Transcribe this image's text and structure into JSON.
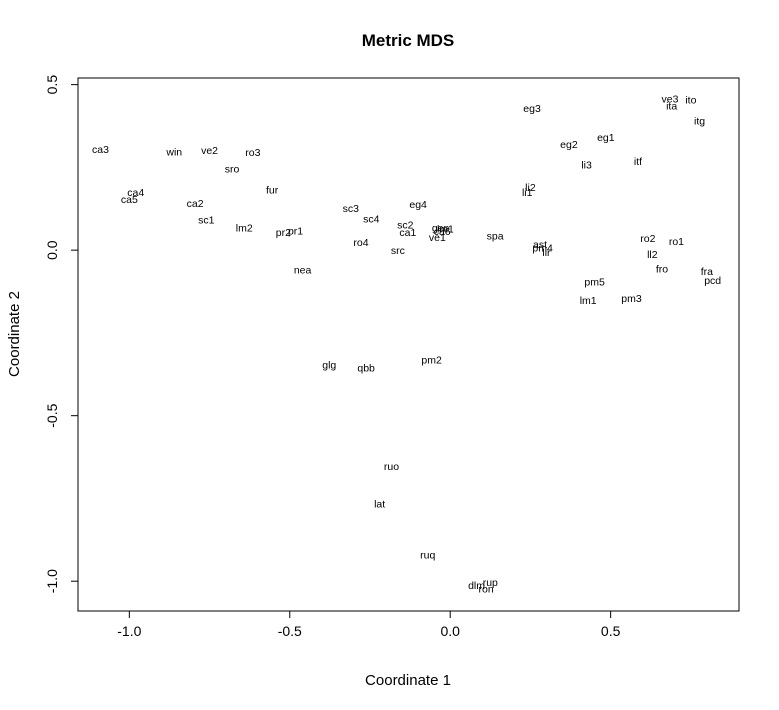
{
  "chart_data": {
    "type": "scatter",
    "title": "Metric MDS",
    "xlabel": "Coordinate 1",
    "ylabel": "Coordinate 2",
    "xlim": [
      -1.16,
      0.9
    ],
    "ylim": [
      -1.09,
      0.52
    ],
    "xticks": [
      -1.0,
      -0.5,
      0.0,
      0.5
    ],
    "xtick_labels": [
      "-1.0",
      "-0.5",
      "0.0",
      "0.5"
    ],
    "yticks": [
      -1.0,
      -0.5,
      0.0,
      0.5
    ],
    "ytick_labels": [
      "-1.0",
      "-0.5",
      "0.0",
      "0.5"
    ],
    "grid": false,
    "points": [
      {
        "label": "ca3",
        "x": -1.09,
        "y": 0.305
      },
      {
        "label": "win",
        "x": -0.86,
        "y": 0.298
      },
      {
        "label": "ve2",
        "x": -0.75,
        "y": 0.303
      },
      {
        "label": "ro3",
        "x": -0.615,
        "y": 0.297
      },
      {
        "label": "sro",
        "x": -0.68,
        "y": 0.247
      },
      {
        "label": "fur",
        "x": -0.555,
        "y": 0.183
      },
      {
        "label": "ca4",
        "x": -0.98,
        "y": 0.175
      },
      {
        "label": "ca5",
        "x": -1.0,
        "y": 0.154
      },
      {
        "label": "ca2",
        "x": -0.795,
        "y": 0.142
      },
      {
        "label": "sc1",
        "x": -0.76,
        "y": 0.092
      },
      {
        "label": "lm2",
        "x": -0.642,
        "y": 0.068
      },
      {
        "label": "pr2",
        "x": -0.52,
        "y": 0.055
      },
      {
        "label": "pr1",
        "x": -0.482,
        "y": 0.06
      },
      {
        "label": "nea",
        "x": -0.46,
        "y": -0.058
      },
      {
        "label": "sc3",
        "x": -0.31,
        "y": 0.127
      },
      {
        "label": "sc4",
        "x": -0.246,
        "y": 0.095
      },
      {
        "label": "eg4",
        "x": -0.1,
        "y": 0.14
      },
      {
        "label": "sc2",
        "x": -0.14,
        "y": 0.077
      },
      {
        "label": "ca1",
        "x": -0.132,
        "y": 0.055
      },
      {
        "label": "ro4",
        "x": -0.278,
        "y": 0.025
      },
      {
        "label": "src",
        "x": -0.163,
        "y": 0.0
      },
      {
        "label": "gen",
        "x": -0.03,
        "y": 0.068
      },
      {
        "label": "lm1",
        "x": -0.015,
        "y": 0.066
      },
      {
        "label": "ca6",
        "x": -0.025,
        "y": 0.058
      },
      {
        "label": "ve1",
        "x": -0.04,
        "y": 0.04
      },
      {
        "label": "spa",
        "x": 0.14,
        "y": 0.045
      },
      {
        "label": "eg3",
        "x": 0.255,
        "y": 0.43
      },
      {
        "label": "eg2",
        "x": 0.37,
        "y": 0.32
      },
      {
        "label": "eg1",
        "x": 0.485,
        "y": 0.342
      },
      {
        "label": "li3",
        "x": 0.425,
        "y": 0.258
      },
      {
        "label": "li2",
        "x": 0.25,
        "y": 0.19
      },
      {
        "label": "li1",
        "x": 0.24,
        "y": 0.175
      },
      {
        "label": "itf",
        "x": 0.585,
        "y": 0.27
      },
      {
        "label": "ve3",
        "x": 0.685,
        "y": 0.458
      },
      {
        "label": "ito",
        "x": 0.75,
        "y": 0.455
      },
      {
        "label": "ita",
        "x": 0.69,
        "y": 0.437
      },
      {
        "label": "itg",
        "x": 0.777,
        "y": 0.392
      },
      {
        "label": "ast",
        "x": 0.28,
        "y": 0.018
      },
      {
        "label": "pm4",
        "x": 0.288,
        "y": 0.008
      },
      {
        "label": "lir",
        "x": 0.3,
        "y": -0.005
      },
      {
        "label": "ro2",
        "x": 0.616,
        "y": 0.036
      },
      {
        "label": "ro1",
        "x": 0.705,
        "y": 0.027
      },
      {
        "label": "ll2",
        "x": 0.63,
        "y": -0.012
      },
      {
        "label": "fro",
        "x": 0.66,
        "y": -0.055
      },
      {
        "label": "fra",
        "x": 0.8,
        "y": -0.063
      },
      {
        "label": "pcd",
        "x": 0.818,
        "y": -0.09
      },
      {
        "label": "pm5",
        "x": 0.45,
        "y": -0.095
      },
      {
        "label": "lm1",
        "x": 0.43,
        "y": -0.15
      },
      {
        "label": "pm3",
        "x": 0.565,
        "y": -0.145
      },
      {
        "label": "glg",
        "x": -0.377,
        "y": -0.345
      },
      {
        "label": "qbb",
        "x": -0.262,
        "y": -0.355
      },
      {
        "label": "pm2",
        "x": -0.058,
        "y": -0.33
      },
      {
        "label": "ruo",
        "x": -0.183,
        "y": -0.652
      },
      {
        "label": "lat",
        "x": -0.22,
        "y": -0.766
      },
      {
        "label": "ruq",
        "x": -0.07,
        "y": -0.92
      },
      {
        "label": "dlm",
        "x": 0.082,
        "y": -1.012
      },
      {
        "label": "rup",
        "x": 0.125,
        "y": -1.003
      },
      {
        "label": "ron",
        "x": 0.112,
        "y": -1.022
      }
    ]
  }
}
